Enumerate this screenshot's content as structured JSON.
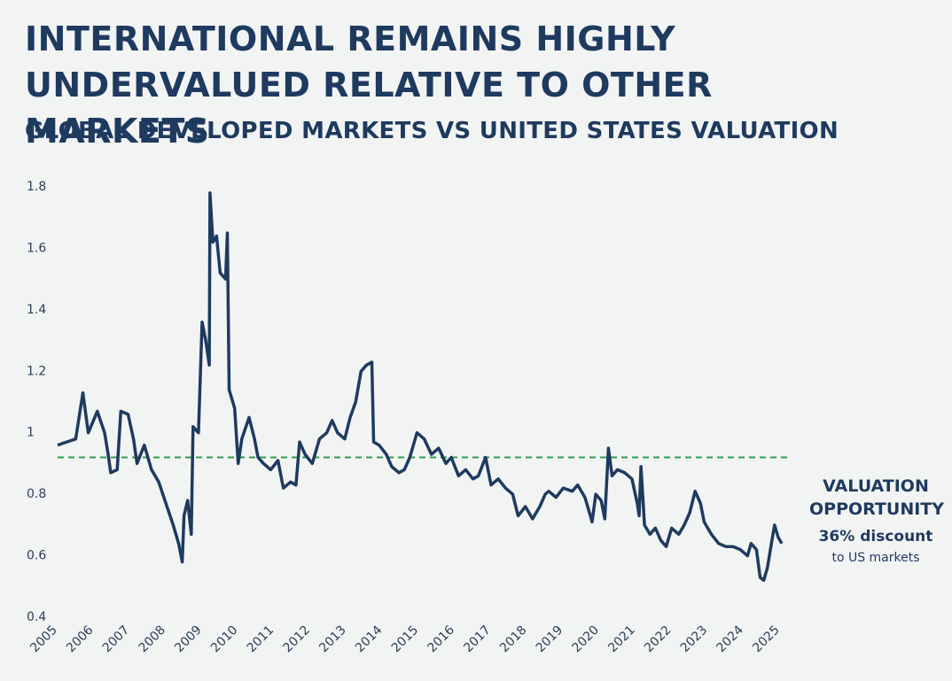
{
  "chart_data": {
    "type": "line",
    "title": "INTERNATIONAL REMAINS HIGHLY UNDERVALUED RELATIVE TO OTHER MARKETS",
    "subtitle": "GLOBAL DEVELOPED MARKETS VS UNITED STATES VALUATION",
    "annotation": {
      "heading": "VALUATION OPPORTUNITY",
      "highlight": "36% discount",
      "note": "to US markets"
    },
    "color": "#1f3a5f",
    "reference": {
      "value": 0.92,
      "color": "#2e9e4f"
    },
    "x": [
      2005.0,
      2005.25,
      2005.5,
      2005.7,
      2005.85,
      2006.1,
      2006.3,
      2006.4,
      2006.47,
      2006.65,
      2006.75,
      2006.95,
      2007.1,
      2007.2,
      2007.4,
      2007.6,
      2007.8,
      2008.0,
      2008.2,
      2008.35,
      2008.45,
      2008.5,
      2008.6,
      2008.7,
      2008.75,
      2008.9,
      2009.0,
      2009.1,
      2009.2,
      2009.22,
      2009.3,
      2009.4,
      2009.5,
      2009.65,
      2009.7,
      2009.75,
      2009.9,
      2010.0,
      2010.1,
      2010.3,
      2010.45,
      2010.55,
      2010.7,
      2010.9,
      2011.1,
      2011.25,
      2011.45,
      2011.6,
      2011.7,
      2011.85,
      2012.05,
      2012.25,
      2012.45,
      2012.6,
      2012.75,
      2012.95,
      2013.1,
      2013.25,
      2013.4,
      2013.55,
      2013.7,
      2013.75,
      2013.9,
      2014.1,
      2014.25,
      2014.45,
      2014.6,
      2014.75,
      2014.95,
      2015.15,
      2015.35,
      2015.55,
      2015.75,
      2015.9,
      2016.1,
      2016.3,
      2016.5,
      2016.65,
      2016.85,
      2017.0,
      2017.2,
      2017.4,
      2017.6,
      2017.75,
      2017.95,
      2018.15,
      2018.35,
      2018.5,
      2018.6,
      2018.8,
      2019.0,
      2019.25,
      2019.4,
      2019.6,
      2019.7,
      2019.8,
      2019.9,
      2020.05,
      2020.15,
      2020.25,
      2020.35,
      2020.5,
      2020.7,
      2020.9,
      2021.05,
      2021.1,
      2021.15,
      2021.25,
      2021.4,
      2021.55,
      2021.7,
      2021.85,
      2022.0,
      2022.2,
      2022.35,
      2022.5,
      2022.65,
      2022.8,
      2022.9,
      2023.1,
      2023.3,
      2023.5,
      2023.7,
      2023.9,
      2024.1,
      2024.2,
      2024.35,
      2024.45,
      2024.55,
      2024.65,
      2024.75,
      2024.85,
      2024.95,
      2025.05
    ],
    "values": [
      0.96,
      0.97,
      0.98,
      1.13,
      1.0,
      1.07,
      1.0,
      0.93,
      0.87,
      0.88,
      1.07,
      1.06,
      0.98,
      0.9,
      0.96,
      0.88,
      0.84,
      0.77,
      0.7,
      0.64,
      0.58,
      0.73,
      0.78,
      0.67,
      1.02,
      1.0,
      1.36,
      1.3,
      1.22,
      1.78,
      1.62,
      1.64,
      1.52,
      1.5,
      1.65,
      1.14,
      1.08,
      0.9,
      0.98,
      1.05,
      0.98,
      0.92,
      0.9,
      0.88,
      0.91,
      0.82,
      0.84,
      0.83,
      0.97,
      0.93,
      0.9,
      0.98,
      1.0,
      1.04,
      1.0,
      0.98,
      1.05,
      1.1,
      1.2,
      1.22,
      1.23,
      0.97,
      0.96,
      0.93,
      0.89,
      0.87,
      0.88,
      0.92,
      1.0,
      0.98,
      0.93,
      0.95,
      0.9,
      0.92,
      0.86,
      0.88,
      0.85,
      0.86,
      0.92,
      0.83,
      0.85,
      0.82,
      0.8,
      0.73,
      0.76,
      0.72,
      0.76,
      0.8,
      0.81,
      0.79,
      0.82,
      0.81,
      0.83,
      0.79,
      0.75,
      0.71,
      0.8,
      0.78,
      0.72,
      0.95,
      0.86,
      0.88,
      0.87,
      0.85,
      0.77,
      0.73,
      0.89,
      0.7,
      0.67,
      0.69,
      0.65,
      0.63,
      0.69,
      0.67,
      0.7,
      0.74,
      0.81,
      0.77,
      0.71,
      0.67,
      0.64,
      0.63,
      0.63,
      0.62,
      0.6,
      0.64,
      0.62,
      0.53,
      0.52,
      0.56,
      0.63,
      0.7,
      0.66,
      0.64
    ],
    "xlim": [
      2005,
      2025.1
    ],
    "xticks": [
      2005,
      2006,
      2007,
      2008,
      2009,
      2010,
      2011,
      2012,
      2013,
      2014,
      2015,
      2016,
      2017,
      2018,
      2019,
      2020,
      2021,
      2022,
      2023,
      2024,
      2025
    ],
    "ylim": [
      0.4,
      1.8
    ],
    "yticks": [
      0.4,
      0.6,
      0.8,
      1,
      1.2,
      1.4,
      1.6,
      1.8
    ],
    "grid": false
  }
}
